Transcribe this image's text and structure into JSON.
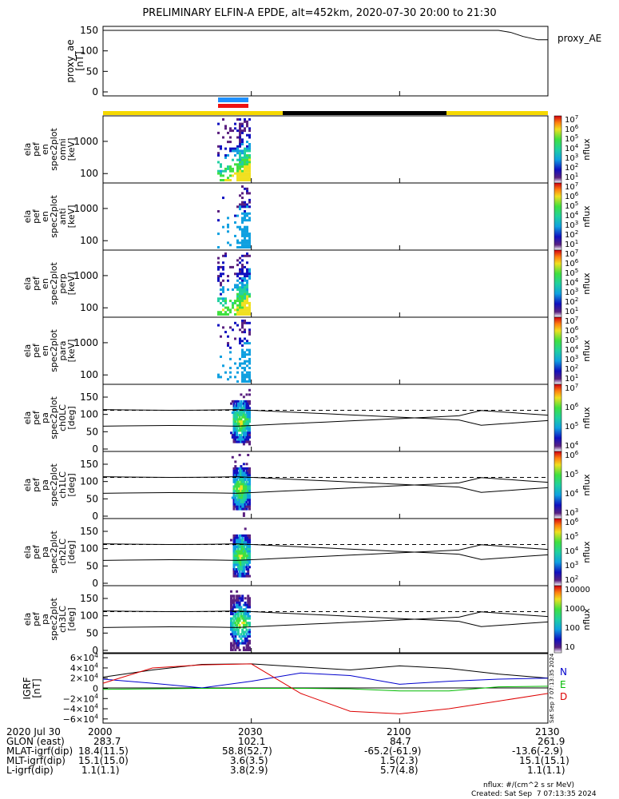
{
  "title": "PRELIMINARY ELFIN-A EPDE, alt=452km, 2020-07-30 20:00 to 21:30",
  "chart_data": [
    {
      "type": "line",
      "panel": "proxy_ae",
      "ylabel": [
        "proxy_ae",
        "[nT]"
      ],
      "yticks": [
        "150",
        "100",
        "50",
        "0"
      ],
      "legend": "proxy_AE",
      "x": [
        0,
        80,
        90,
        100,
        110,
        120,
        130,
        140,
        145,
        150,
        160,
        165,
        170,
        176,
        180
      ],
      "values": [
        150,
        150,
        150,
        150,
        150,
        150,
        150,
        150,
        150,
        150,
        150,
        145,
        135,
        127,
        127
      ]
    },
    {
      "type": "heatmap",
      "panel": "omni",
      "ylabel": [
        "ela",
        "pef",
        "en",
        "spec2plot",
        "omni",
        "[keV]"
      ],
      "yticks": [
        "1000",
        "100"
      ],
      "colorbar": {
        "label": "nflux",
        "ticks": [
          "10^7",
          "10^6",
          "10^5",
          "10^4",
          "10^3",
          "10^2",
          "10^1"
        ]
      }
    },
    {
      "type": "heatmap",
      "panel": "anti",
      "ylabel": [
        "ela",
        "pef",
        "en",
        "spec2plot",
        "anti",
        "[keV]"
      ],
      "yticks": [
        "1000",
        "100"
      ],
      "colorbar": {
        "label": "nflux",
        "ticks": [
          "10^7",
          "10^6",
          "10^5",
          "10^4",
          "10^3",
          "10^2",
          "10^1"
        ]
      }
    },
    {
      "type": "heatmap",
      "panel": "perp",
      "ylabel": [
        "ela",
        "pef",
        "en",
        "spec2plot",
        "perp",
        "[keV]"
      ],
      "yticks": [
        "1000",
        "100"
      ],
      "colorbar": {
        "label": "nflux",
        "ticks": [
          "10^7",
          "10^6",
          "10^5",
          "10^4",
          "10^3",
          "10^2",
          "10^1"
        ]
      }
    },
    {
      "type": "heatmap",
      "panel": "para",
      "ylabel": [
        "ela",
        "pef",
        "en",
        "spec2plot",
        "para",
        "[keV]"
      ],
      "yticks": [
        "1000",
        "100"
      ],
      "colorbar": {
        "label": "nflux",
        "ticks": [
          "10^7",
          "10^6",
          "10^5",
          "10^4",
          "10^3",
          "10^2",
          "10^1"
        ]
      }
    },
    {
      "type": "heatmap",
      "panel": "ch0LC",
      "ylabel": [
        "ela",
        "pef",
        "pa",
        "spec2plot",
        "ch0LC",
        "[deg]"
      ],
      "yticks": [
        "150",
        "100",
        "50",
        "0"
      ],
      "colorbar": {
        "label": "nflux",
        "ticks": [
          "10^7",
          "10^6",
          "10^5",
          "10^4"
        ]
      }
    },
    {
      "type": "heatmap",
      "panel": "ch1LC",
      "ylabel": [
        "ela",
        "pef",
        "pa",
        "spec2plot",
        "ch1LC",
        "[deg]"
      ],
      "yticks": [
        "150",
        "100",
        "50",
        "0"
      ],
      "colorbar": {
        "label": "nflux",
        "ticks": [
          "10^6",
          "10^5",
          "10^4",
          "10^3"
        ]
      }
    },
    {
      "type": "heatmap",
      "panel": "ch2LC",
      "ylabel": [
        "ela",
        "pef",
        "pa",
        "spec2plot",
        "ch2LC",
        "[deg]"
      ],
      "yticks": [
        "150",
        "100",
        "50",
        "0"
      ],
      "colorbar": {
        "label": "nflux",
        "ticks": [
          "10^6",
          "10^5",
          "10^4",
          "10^3",
          "10^2"
        ]
      }
    },
    {
      "type": "heatmap",
      "panel": "ch3LC",
      "ylabel": [
        "ela",
        "pef",
        "pa",
        "spec2plot",
        "ch3LC",
        "[deg]"
      ],
      "yticks": [
        "150",
        "100",
        "50",
        "0"
      ],
      "colorbar": {
        "label": "nflux",
        "ticks": [
          "10000",
          "1000",
          "100",
          "10"
        ]
      }
    },
    {
      "type": "line",
      "panel": "igrf",
      "ylabel": [
        "IGRF",
        "[nT]"
      ],
      "yticks": [
        "6×10^4",
        "4×10^4",
        "2×10^4",
        "0",
        "−2×10^4",
        "−4×10^4",
        "−6×10^4"
      ],
      "ylim": [
        -65000,
        65000
      ],
      "x": [
        0,
        10,
        20,
        30,
        40,
        50,
        60,
        70,
        80,
        90
      ],
      "series": [
        {
          "name": "tot",
          "color": "#000000",
          "values": [
            22000,
            36000,
            47000,
            48000,
            42000,
            36000,
            44000,
            39000,
            28000,
            20000
          ]
        },
        {
          "name": "N",
          "color": "#0000cc",
          "values": [
            18000,
            10000,
            1000,
            14000,
            30000,
            25000,
            8000,
            14000,
            18000,
            20000
          ]
        },
        {
          "name": "E",
          "color": "#00bb00",
          "values": [
            -2000,
            -1000,
            0,
            0,
            0,
            -1000,
            -5000,
            -5000,
            3000,
            4000
          ]
        },
        {
          "name": "D",
          "color": "#dd0000",
          "values": [
            10000,
            40000,
            46000,
            48000,
            -10000,
            -45000,
            -50000,
            -40000,
            -25000,
            -10000
          ]
        }
      ],
      "legend": [
        "N",
        "E",
        "D"
      ]
    }
  ],
  "time_axis": {
    "rows": [
      {
        "label": "2020 Jul 30",
        "values": [
          "2000",
          "2030",
          "2100",
          "2130"
        ]
      },
      {
        "label": "GLON (east)",
        "values": [
          "283.7",
          "102.1",
          "84.7",
          "261.9"
        ]
      },
      {
        "label": "MLAT-igrf(dip)",
        "values": [
          "18.4(11.5)",
          "58.8(52.7)",
          "-65.2(-61.9)",
          "-13.6(-2.9)"
        ]
      },
      {
        "label": "MLT-igrf(dip)",
        "values": [
          "15.1(15.0)",
          "3.6(3.5)",
          "1.5(2.3)",
          "15.1(15.1)"
        ]
      },
      {
        "label": "L-igrf(dip)",
        "values": [
          "1.1(1.1)",
          "3.8(2.9)",
          "5.7(4.8)",
          "1.1(1.1)"
        ]
      }
    ]
  },
  "footer": {
    "units": "nflux: #/(cm^2 s sr MeV)",
    "created": "Created: Sat Sep  7 07:13:35 2024",
    "side_stamp": "Sat Sep  7 07:13:35 2024"
  },
  "colors": {
    "sunlight": "#f5d800",
    "shadow": "#000000",
    "orbit_blue": "#1e90ff",
    "orbit_red": "#ee1111"
  }
}
